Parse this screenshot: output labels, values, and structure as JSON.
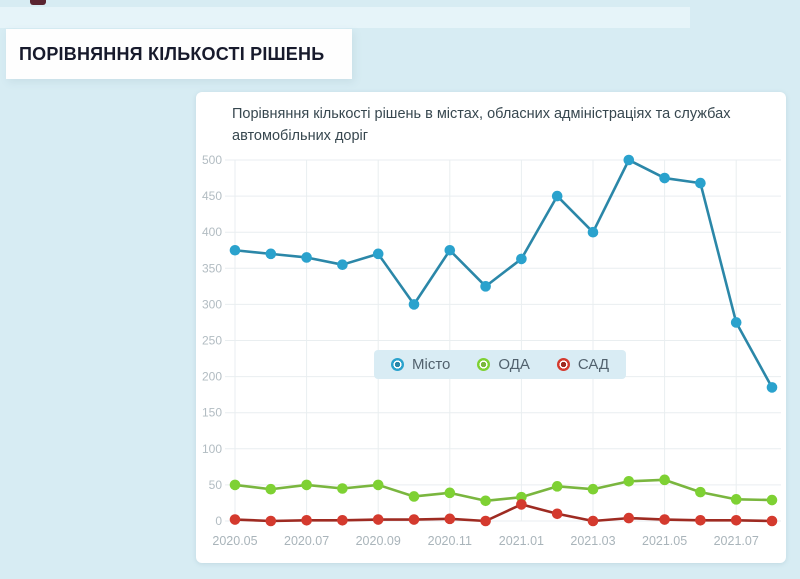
{
  "header": {
    "title": "ПОРІВНЯННЯ КІЛЬКОСТІ РІШЕНЬ"
  },
  "chart_data": {
    "type": "line",
    "title": "Порівняння кількості рішень в містах, обласних адміністраціях та службах автомобільних доріг",
    "x": [
      "2020.05",
      "2020.06",
      "2020.07",
      "2020.08",
      "2020.09",
      "2020.10",
      "2020.11",
      "2020.12",
      "2021.01",
      "2021.02",
      "2021.03",
      "2021.04",
      "2021.05",
      "2021.06",
      "2021.07",
      "2021.08"
    ],
    "x_tick_labels": [
      "2020.05",
      "2020.07",
      "2020.09",
      "2020.11",
      "2021.01",
      "2021.03",
      "2021.05",
      "2021.07"
    ],
    "series": [
      {
        "name": "Місто",
        "slug": "misto",
        "dot_color": "#2aa2cd",
        "line_color": "#2b87a8",
        "values": [
          375,
          370,
          365,
          355,
          370,
          300,
          375,
          325,
          363,
          450,
          400,
          500,
          475,
          468,
          275,
          185
        ]
      },
      {
        "name": "ОДА",
        "slug": "oda",
        "dot_color": "#7ed133",
        "line_color": "#7ab63f",
        "values": [
          50,
          44,
          50,
          45,
          50,
          34,
          39,
          28,
          33,
          48,
          44,
          55,
          57,
          40,
          30,
          29
        ]
      },
      {
        "name": "САД",
        "slug": "sad",
        "dot_color": "#d43a2e",
        "line_color": "#9e2b22",
        "values": [
          2,
          0,
          1,
          1,
          2,
          2,
          3,
          0,
          23,
          10,
          0,
          4,
          2,
          1,
          1,
          0
        ]
      }
    ],
    "ylim": [
      0,
      500
    ],
    "y_ticks": [
      0,
      50,
      100,
      150,
      200,
      250,
      300,
      350,
      400,
      450,
      500
    ],
    "grid": true,
    "legend_position": "inside-center",
    "colors": {
      "grid_line": "#e9eef0",
      "y_tick_text": "#b2bcc2",
      "x_tick_text": "#a9b4ba",
      "legend_bg": "#d9ecf4",
      "card_bg": "#ffffff",
      "page_bg": "#d7ecf3"
    }
  }
}
